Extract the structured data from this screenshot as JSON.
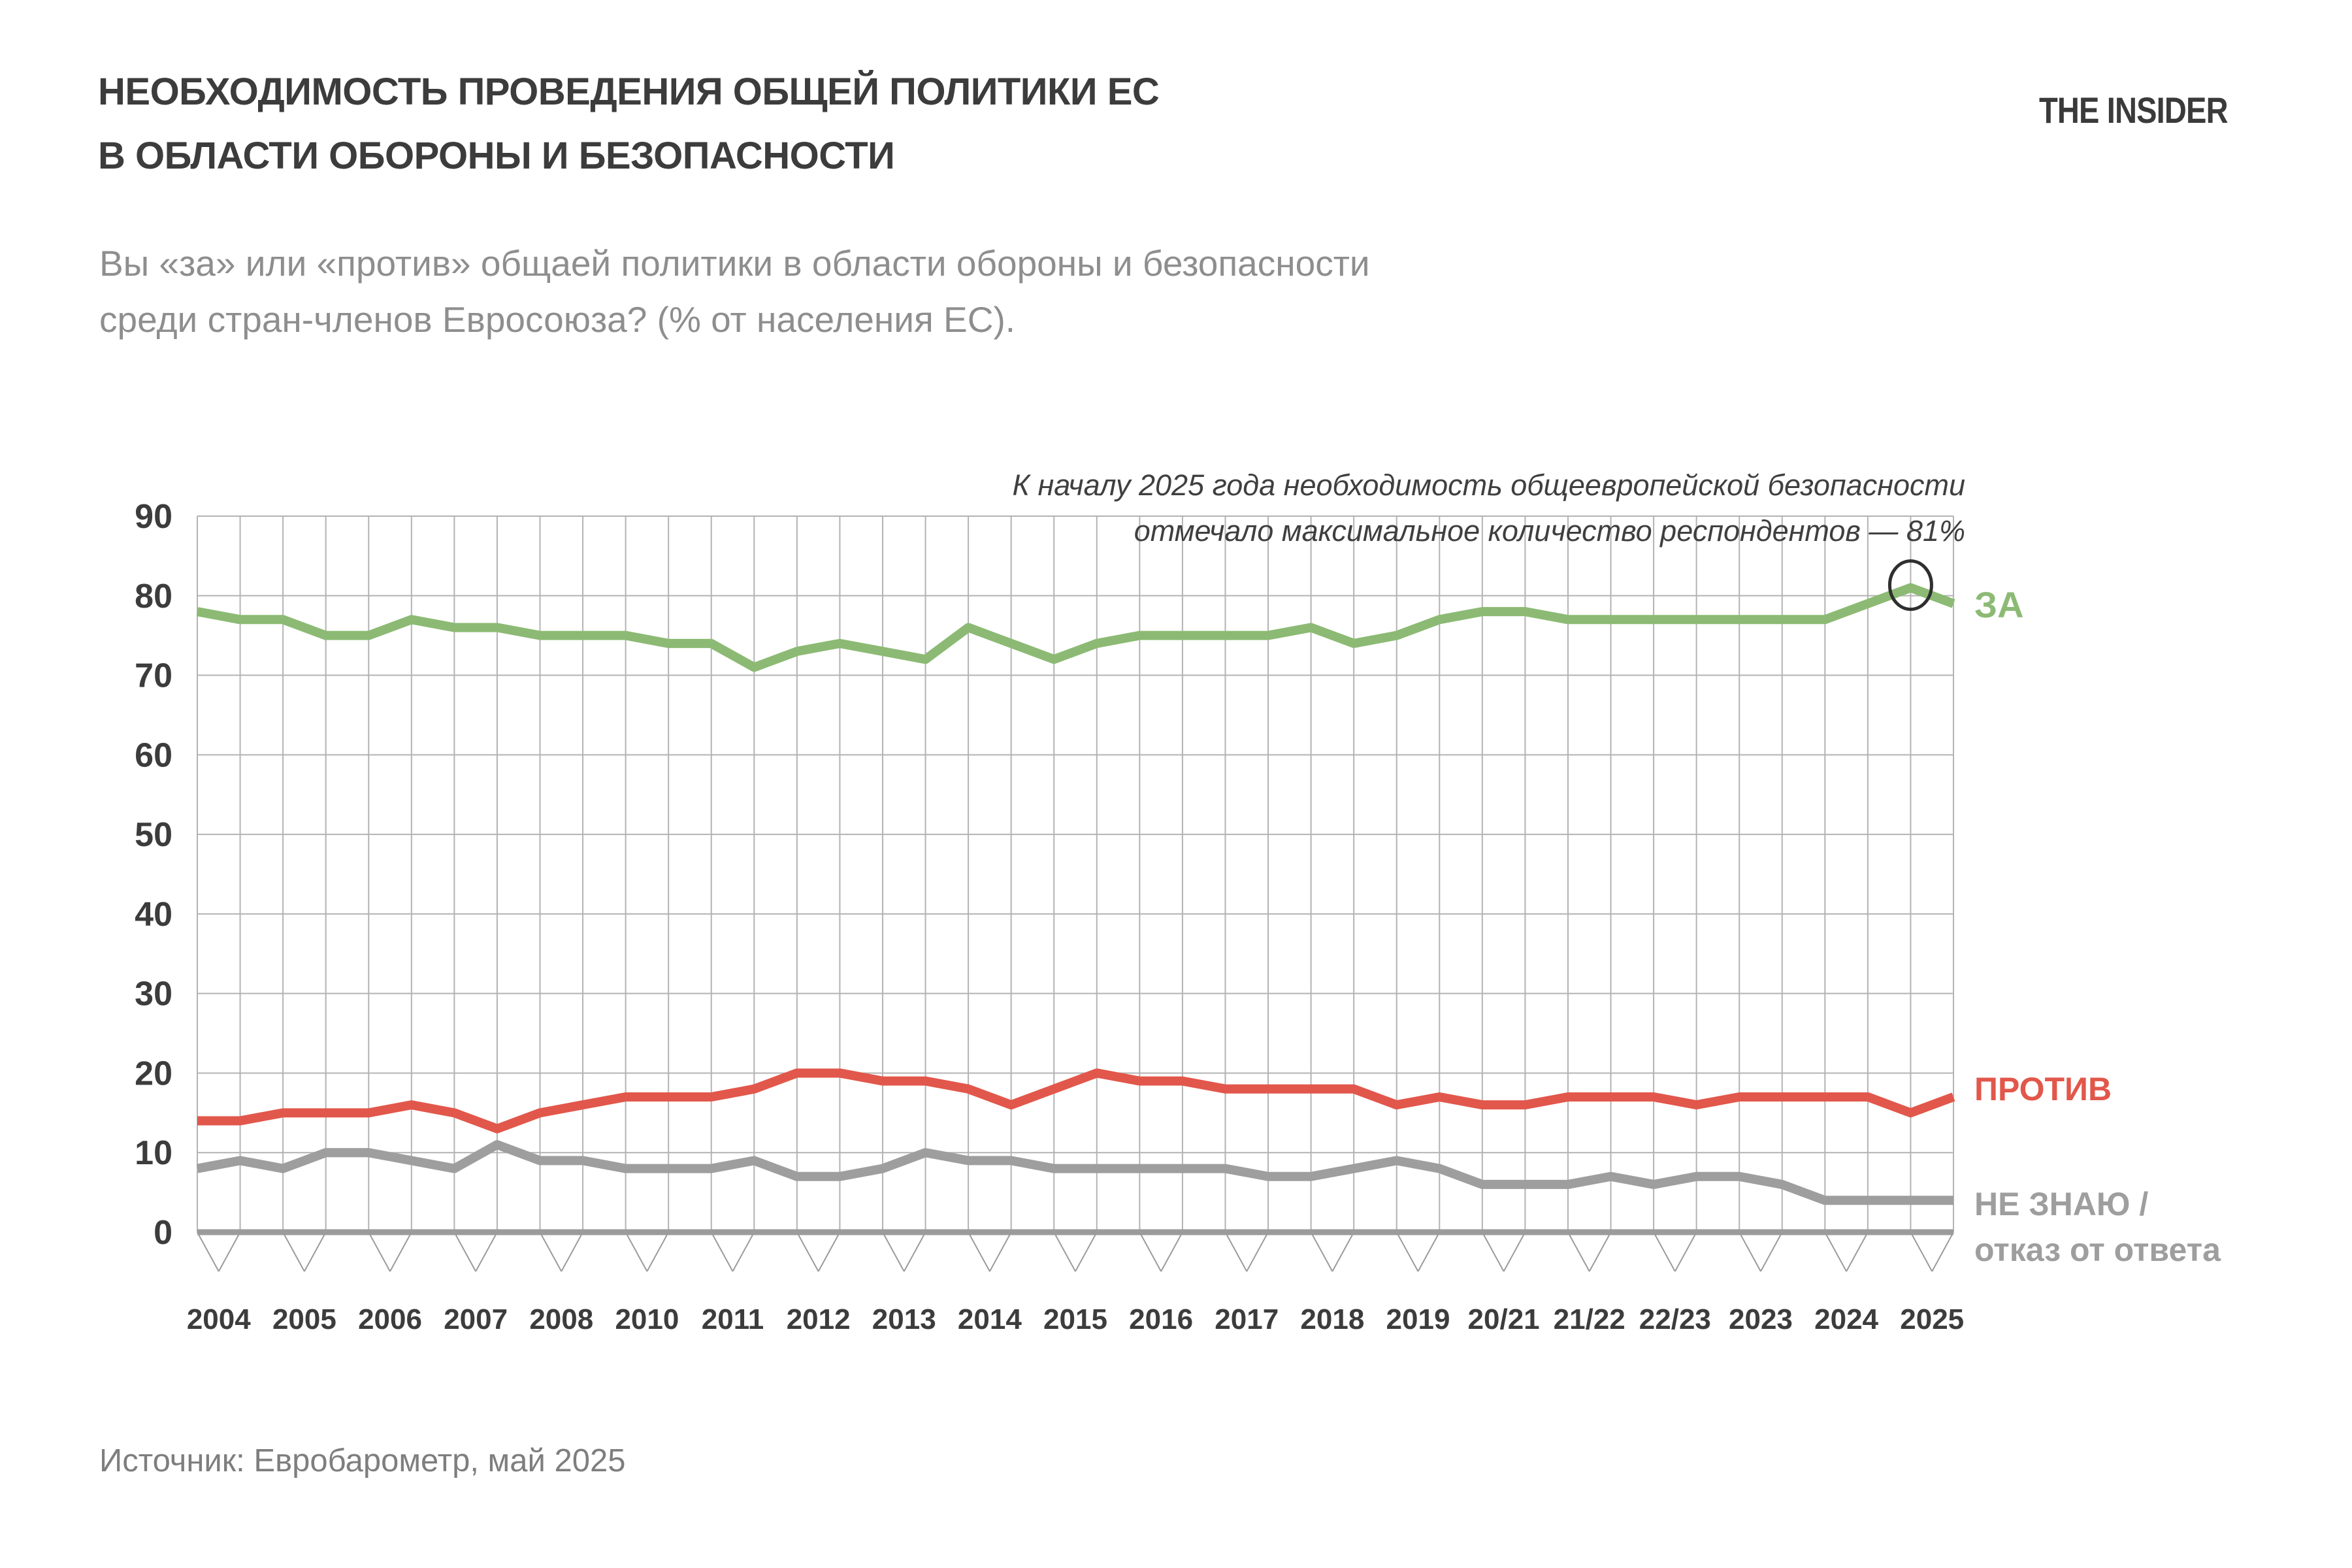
{
  "header": {
    "title_line1": "НЕОБХОДИМОСТЬ ПРОВЕДЕНИЯ ОБЩЕЙ ПОЛИТИКИ ЕС",
    "title_line2": "В ОБЛАСТИ ОБОРОНЫ И БЕЗОПАСНОСТИ",
    "subtitle_line1": "Вы «за» или «против» общаей политики в области обороны и безопасности",
    "subtitle_line2": "среди стран-членов Евросоюза? (% от населения ЕС).",
    "logo": "THE INSIDER"
  },
  "annotation": {
    "line1": "К началу 2025 года необходимость общеевропейской безопасности",
    "line2": "отмечало максимальное количество респондентов — 81%"
  },
  "legend": {
    "za": "ЗА",
    "protiv": "ПРОТИВ",
    "neznayu_line1": "НЕ ЗНАЮ /",
    "neznayu_line2": "отказ от ответа"
  },
  "source": "Источник: Евробарометр, май 2025",
  "chart_data": {
    "type": "line",
    "title": "Необходимость проведения общей политики ЕС в области обороны и безопасности",
    "categories": [
      "2004",
      "2005",
      "2006",
      "2007",
      "2008",
      "2010",
      "2011",
      "2012",
      "2013",
      "2014",
      "2015",
      "2016",
      "2017",
      "2018",
      "2019",
      "20/21",
      "21/22",
      "22/23",
      "2023",
      "2024",
      "2025"
    ],
    "points_per_category": 2,
    "ylim": [
      0,
      90
    ],
    "ytick_step": 10,
    "grid": true,
    "legend_position": "right",
    "colors": {
      "grid": "#B3B3B3",
      "axis": "#9B9B9B",
      "tick": "#9B9B9B",
      "text_dark": "#3C3C3C",
      "highlight_circle": "#2F2F2F"
    },
    "series": [
      {
        "name": "ЗА",
        "color": "#8CBA74",
        "values": [
          78,
          77,
          77,
          75,
          75,
          77,
          76,
          76,
          75,
          75,
          75,
          74,
          74,
          71,
          73,
          74,
          73,
          72,
          76,
          74,
          72,
          74,
          75,
          75,
          75,
          75,
          76,
          74,
          75,
          77,
          78,
          78,
          77,
          77,
          77,
          77,
          77,
          77,
          77,
          79,
          81,
          79
        ]
      },
      {
        "name": "ПРОТИВ",
        "color": "#E2574B",
        "values": [
          14,
          14,
          15,
          15,
          15,
          16,
          15,
          13,
          15,
          16,
          17,
          17,
          17,
          18,
          20,
          20,
          19,
          19,
          18,
          16,
          18,
          20,
          19,
          19,
          18,
          18,
          18,
          18,
          16,
          17,
          16,
          16,
          17,
          17,
          17,
          16,
          17,
          17,
          17,
          17,
          15,
          17
        ]
      },
      {
        "name": "НЕ ЗНАЮ / отказ от ответа",
        "color": "#9E9E9E",
        "values": [
          8,
          9,
          8,
          10,
          10,
          9,
          8,
          11,
          9,
          9,
          8,
          8,
          8,
          9,
          7,
          7,
          8,
          10,
          9,
          9,
          8,
          8,
          8,
          8,
          8,
          7,
          7,
          8,
          9,
          8,
          6,
          6,
          6,
          7,
          6,
          7,
          7,
          6,
          4,
          4,
          4,
          4
        ]
      }
    ],
    "highlight": {
      "series": "ЗА",
      "point_index": 40,
      "value": 81
    }
  }
}
